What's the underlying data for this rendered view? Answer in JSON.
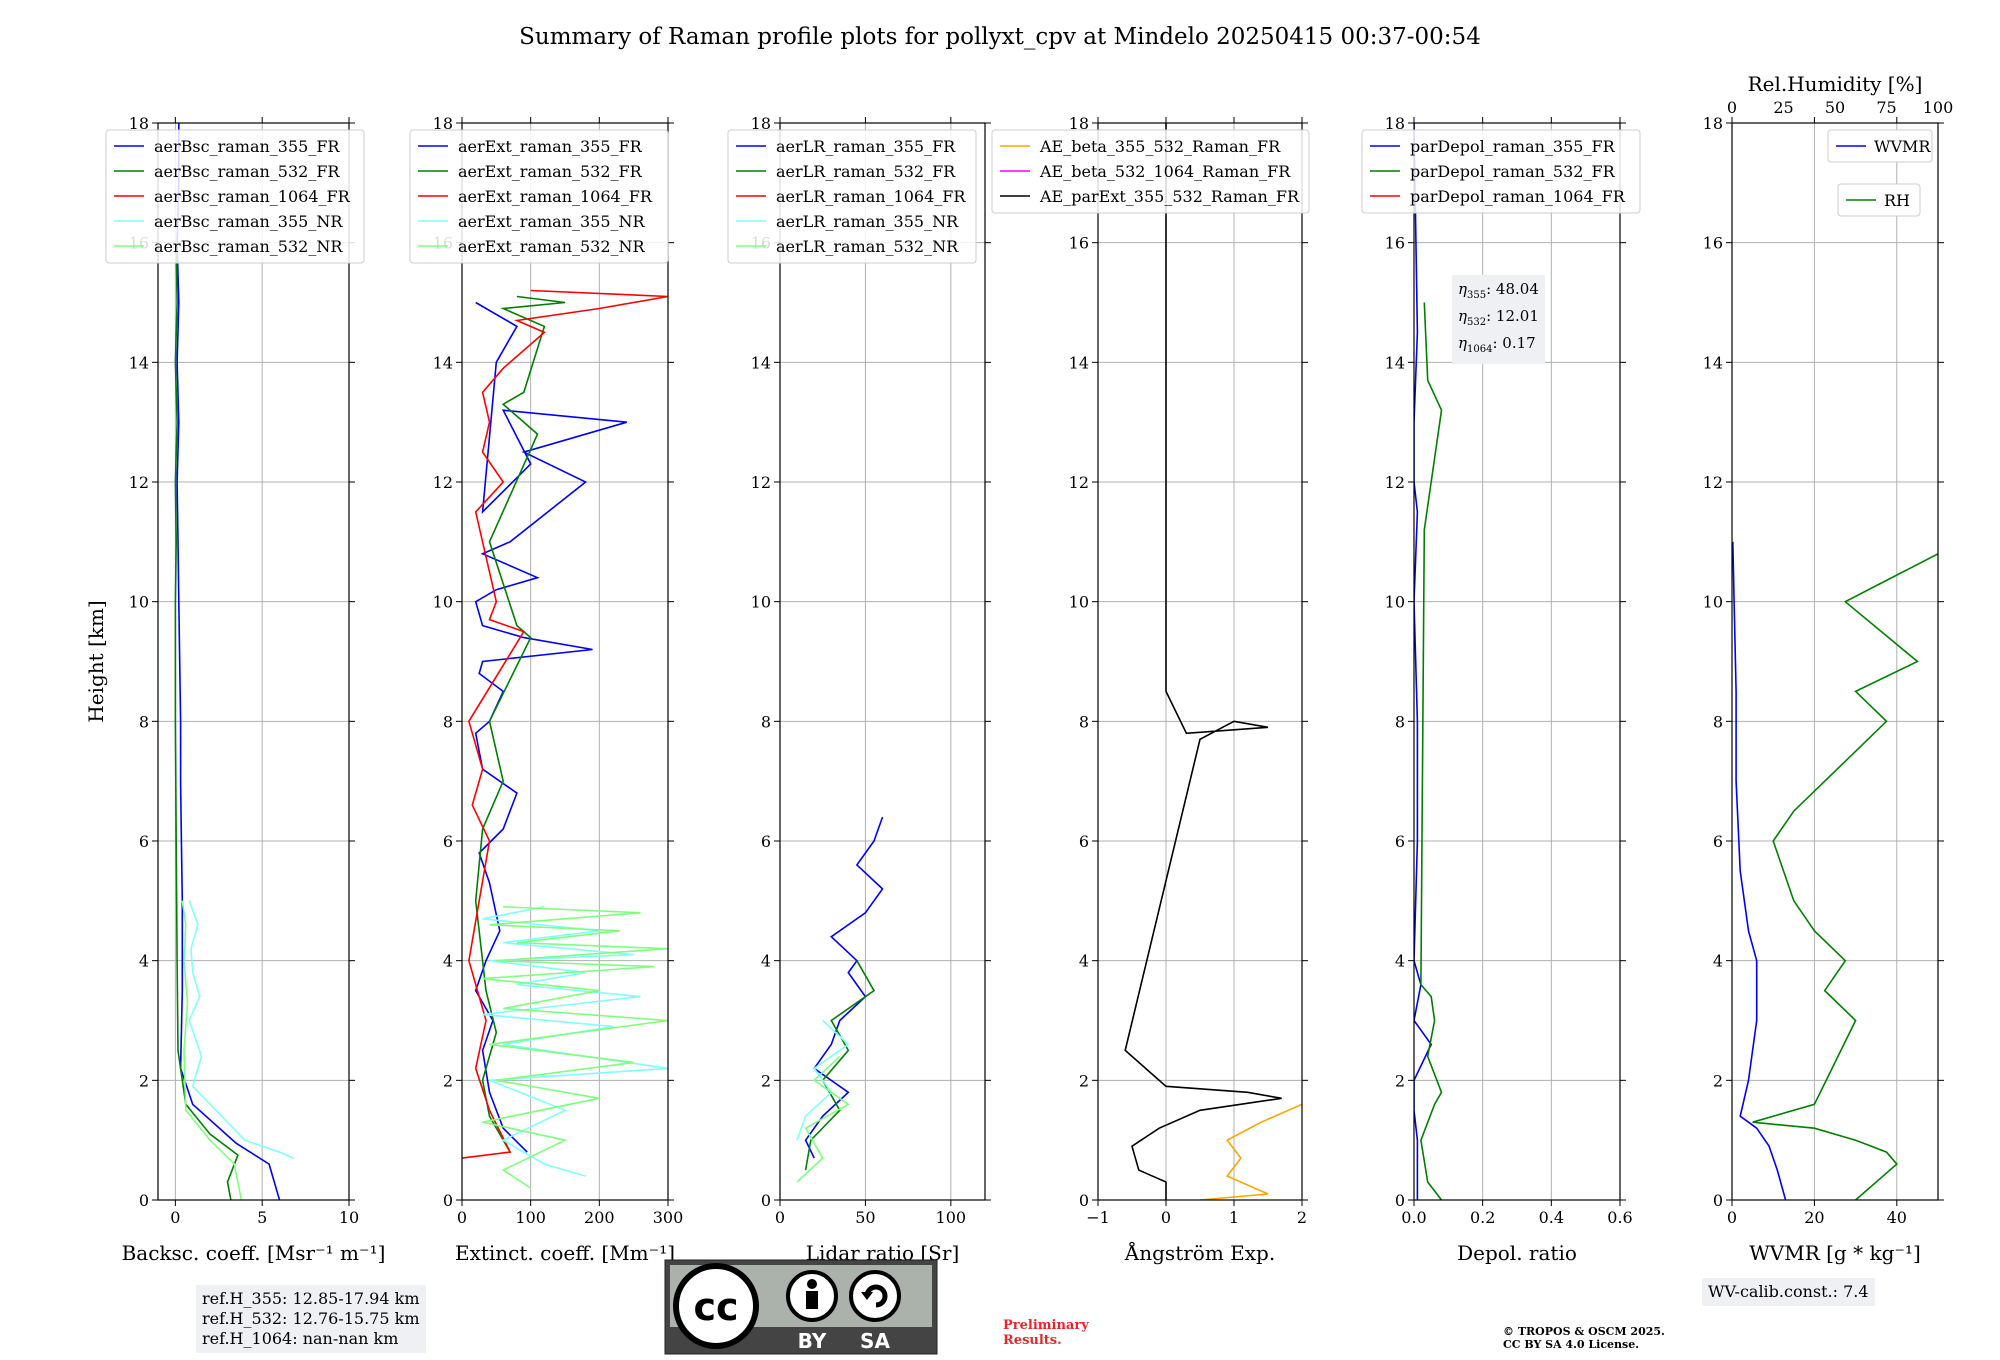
{
  "title": "Summary of Raman profile plots for pollyxt_cpv at Mindelo 20250415 00:37-00:54",
  "colors": {
    "blue": "#0000ff",
    "green": "#008000",
    "red": "#ff0000",
    "cyan": "#7fffff",
    "lightgreen": "#7fff7f",
    "orange": "#ffa500",
    "magenta": "#ff00ff",
    "black": "#000000"
  },
  "chart_data": [
    {
      "type": "line",
      "xlabel": "Backsc. coeff. [Msr⁻¹ m⁻¹]",
      "ylabel": "Height [km]",
      "xlim": [
        -1,
        10
      ],
      "ylim": [
        0,
        18
      ],
      "xticks": [
        0,
        5,
        10
      ],
      "xtick_labels": [
        "0",
        "5",
        "10"
      ],
      "yticks": [
        0,
        2,
        4,
        6,
        8,
        10,
        12,
        14,
        16,
        18
      ],
      "legend": "upper-left",
      "series": [
        {
          "name": "aerBsc_raman_355_FR",
          "color": "#0000ff",
          "x": [
            6.0,
            5.4,
            3.5,
            1.0,
            0.3,
            0.4,
            0.4,
            0.35,
            0.3,
            0.3,
            0.25,
            0.2,
            0.15,
            0.1,
            0.2,
            0.1,
            0.2,
            0.1,
            0.2,
            0.2
          ],
          "y": [
            0.0,
            0.6,
            0.95,
            1.6,
            2.2,
            3.5,
            5.0,
            6.0,
            7.0,
            8.0,
            9.0,
            10.0,
            11.0,
            12.0,
            13.0,
            14.0,
            15.0,
            16.0,
            17.0,
            18.0
          ]
        },
        {
          "name": "aerBsc_raman_532_FR",
          "color": "#008000",
          "x": [
            3.2,
            3.0,
            3.6,
            2.0,
            0.6,
            0.15,
            0.1,
            0.05,
            0.0,
            0.0,
            0.05,
            0.0,
            0.1,
            0.0,
            0.1,
            0.05
          ],
          "y": [
            0.0,
            0.3,
            0.75,
            1.1,
            1.6,
            2.5,
            4.0,
            6.0,
            8.0,
            10.0,
            11.0,
            12.0,
            13.0,
            14.0,
            15.0,
            16.0
          ]
        },
        {
          "name": "aerBsc_raman_1064_FR",
          "color": "#ff0000",
          "x": [],
          "y": []
        },
        {
          "name": "aerBsc_raman_355_NR",
          "color": "#7fffff",
          "x": [
            6.8,
            6.0,
            4.0,
            1.0,
            1.5,
            0.8,
            1.4,
            1.0,
            0.9,
            1.3,
            0.8
          ],
          "y": [
            0.7,
            0.8,
            1.0,
            1.9,
            2.4,
            3.0,
            3.4,
            3.8,
            4.2,
            4.6,
            5.0
          ]
        },
        {
          "name": "aerBsc_raman_532_NR",
          "color": "#7fff7f",
          "x": [
            3.8,
            3.4,
            2.0,
            0.6,
            0.5,
            0.7,
            0.5,
            0.6,
            0.4
          ],
          "y": [
            0.0,
            0.6,
            1.0,
            1.5,
            2.5,
            3.3,
            4.0,
            4.6,
            5.0
          ]
        }
      ]
    },
    {
      "type": "line",
      "xlabel": "Extinct. coeff. [Mm⁻¹]",
      "xlim": [
        0,
        300
      ],
      "ylim": [
        0,
        18
      ],
      "xticks": [
        0,
        100,
        200,
        300
      ],
      "xtick_labels": [
        "0",
        "100",
        "200",
        "300"
      ],
      "yticks": [
        0,
        2,
        4,
        6,
        8,
        10,
        12,
        14,
        16,
        18
      ],
      "legend": "upper-left",
      "series": [
        {
          "name": "aerExt_raman_355_FR",
          "color": "#0000ff",
          "x": [
            95,
            60,
            40,
            30,
            45,
            20,
            35,
            55,
            40,
            25,
            60,
            80,
            30,
            20,
            40,
            60,
            25,
            30,
            190,
            90,
            30,
            20,
            50,
            110,
            30,
            70,
            180,
            90,
            240,
            60,
            100,
            30,
            50,
            80,
            20
          ],
          "y": [
            0.8,
            1.2,
            1.8,
            2.5,
            3.0,
            3.5,
            4.0,
            4.5,
            5.3,
            5.8,
            6.2,
            6.8,
            7.2,
            7.8,
            8.0,
            8.5,
            8.8,
            9.0,
            9.2,
            9.4,
            9.6,
            10.0,
            10.2,
            10.4,
            10.8,
            11.0,
            12.0,
            12.5,
            13.0,
            13.2,
            12.3,
            11.5,
            14.0,
            14.6,
            15.0
          ]
        },
        {
          "name": "aerExt_raman_532_FR",
          "color": "#008000",
          "x": [
            70,
            40,
            30,
            50,
            35,
            20,
            30,
            60,
            40,
            100,
            80,
            40,
            110,
            60,
            90,
            120,
            60,
            150,
            80
          ],
          "y": [
            0.8,
            1.4,
            2.0,
            2.8,
            3.5,
            5.0,
            6.2,
            7.0,
            8.0,
            9.4,
            9.6,
            11.0,
            12.8,
            13.3,
            13.5,
            14.6,
            14.9,
            15.0,
            15.1
          ]
        },
        {
          "name": "aerExt_raman_1064_FR",
          "color": "#ff0000",
          "x": [
            0,
            70,
            40,
            20,
            35,
            10,
            25,
            40,
            15,
            30,
            10,
            90,
            40,
            50,
            20,
            60,
            30,
            40,
            30,
            60,
            120,
            80,
            200,
            300,
            100
          ],
          "y": [
            0.7,
            0.8,
            1.5,
            2.2,
            3.0,
            4.0,
            5.0,
            6.0,
            6.6,
            7.2,
            8.0,
            9.5,
            9.7,
            10.0,
            11.5,
            12.0,
            12.5,
            13.0,
            13.5,
            13.9,
            14.5,
            14.7,
            14.9,
            15.1,
            15.2
          ]
        },
        {
          "name": "aerExt_raman_355_NR",
          "color": "#7fffff",
          "x": [
            180,
            120,
            60,
            150,
            40,
            300,
            60,
            220,
            30,
            260,
            80,
            180,
            40,
            250,
            60,
            200,
            30,
            120
          ],
          "y": [
            0.4,
            0.6,
            1.0,
            1.5,
            2.0,
            2.2,
            2.6,
            2.9,
            3.1,
            3.4,
            3.6,
            3.8,
            4.0,
            4.1,
            4.3,
            4.5,
            4.7,
            4.9
          ]
        },
        {
          "name": "aerExt_raman_532_NR",
          "color": "#7fff7f",
          "x": [
            100,
            60,
            150,
            30,
            200,
            50,
            250,
            40,
            300,
            60,
            200,
            30,
            280,
            50,
            300,
            80,
            230,
            40,
            260,
            60
          ],
          "y": [
            0.2,
            0.5,
            1.0,
            1.3,
            1.7,
            2.0,
            2.3,
            2.6,
            3.0,
            3.2,
            3.5,
            3.7,
            3.9,
            4.0,
            4.2,
            4.3,
            4.5,
            4.6,
            4.8,
            4.9
          ]
        }
      ]
    },
    {
      "type": "line",
      "xlabel": "Lidar ratio [Sr]",
      "xlim": [
        0,
        120
      ],
      "ylim": [
        0,
        18
      ],
      "xticks": [
        0,
        50,
        100
      ],
      "xtick_labels": [
        "0",
        "50",
        "100"
      ],
      "yticks": [
        0,
        2,
        4,
        6,
        8,
        10,
        12,
        14,
        16,
        18
      ],
      "legend": "upper-left",
      "series": [
        {
          "name": "aerLR_raman_355_FR",
          "color": "#0000ff",
          "x": [
            20,
            15,
            25,
            40,
            20,
            30,
            35,
            50,
            40,
            45,
            30,
            50,
            60,
            45,
            55,
            60
          ],
          "y": [
            0.7,
            1.0,
            1.4,
            1.8,
            2.2,
            2.6,
            3.0,
            3.4,
            3.8,
            4.0,
            4.4,
            4.8,
            5.2,
            5.6,
            6.0,
            6.4
          ]
        },
        {
          "name": "aerLR_raman_532_FR",
          "color": "#008000",
          "x": [
            15,
            18,
            35,
            25,
            40,
            30,
            55,
            45
          ],
          "y": [
            0.5,
            1.0,
            1.5,
            2.0,
            2.5,
            3.0,
            3.5,
            4.0
          ]
        },
        {
          "name": "aerLR_raman_1064_FR",
          "color": "#ff0000",
          "x": [],
          "y": []
        },
        {
          "name": "aerLR_raman_355_NR",
          "color": "#7fffff",
          "x": [
            10,
            15,
            30,
            20,
            40,
            25
          ],
          "y": [
            1.0,
            1.4,
            1.8,
            2.2,
            2.6,
            3.0
          ]
        },
        {
          "name": "aerLR_raman_532_NR",
          "color": "#7fff7f",
          "x": [
            10,
            25,
            15,
            40,
            20,
            35
          ],
          "y": [
            0.3,
            0.7,
            1.2,
            1.6,
            2.0,
            2.4
          ]
        }
      ]
    },
    {
      "type": "line",
      "xlabel": "Ångström Exp.",
      "xlim": [
        -1,
        2
      ],
      "ylim": [
        0,
        18
      ],
      "xticks": [
        -1,
        0,
        1,
        2
      ],
      "xtick_labels": [
        "−1",
        "0",
        "1",
        "2"
      ],
      "yticks": [
        0,
        2,
        4,
        6,
        8,
        10,
        12,
        14,
        16,
        18
      ],
      "legend": "upper-center",
      "series": [
        {
          "name": "AE_beta_355_532_Raman_FR",
          "color": "#ffa500",
          "x": [
            0.5,
            1.5,
            0.9,
            1.1,
            0.9,
            1.4,
            2.0
          ],
          "y": [
            0.0,
            0.1,
            0.4,
            0.7,
            1.0,
            1.3,
            1.6
          ]
        },
        {
          "name": "AE_beta_532_1064_Raman_FR",
          "color": "#ff00ff",
          "x": [],
          "y": []
        },
        {
          "name": "AE_parExt_355_532_Raman_FR",
          "color": "#000000",
          "x": [
            0.0,
            0.0,
            -0.4,
            -0.5,
            -0.1,
            0.5,
            1.7,
            1.2,
            0.0,
            -0.3,
            -0.6,
            0.5,
            1.0,
            1.5,
            0.3,
            0.0,
            0.0,
            0.0,
            0.0
          ],
          "y": [
            0.0,
            0.3,
            0.5,
            0.9,
            1.2,
            1.5,
            1.7,
            1.8,
            1.9,
            2.2,
            2.5,
            7.7,
            8.0,
            7.9,
            7.8,
            8.5,
            10.0,
            14.0,
            18.0
          ]
        }
      ]
    },
    {
      "type": "line",
      "xlabel": "Depol. ratio",
      "xlim": [
        0,
        0.6
      ],
      "ylim": [
        0,
        18
      ],
      "xticks": [
        0,
        0.2,
        0.4,
        0.6
      ],
      "xtick_labels": [
        "0.0",
        "0.2",
        "0.4",
        "0.6"
      ],
      "yticks": [
        0,
        2,
        4,
        6,
        8,
        10,
        12,
        14,
        16,
        18
      ],
      "legend": "upper-left",
      "series": [
        {
          "name": "parDepol_raman_355_FR",
          "color": "#0000ff",
          "x": [
            0.01,
            0.01,
            0.0,
            0.0,
            0.05,
            0.0,
            0.02,
            0.0,
            0.01,
            0.01,
            0.0,
            0.01,
            0.0,
            0.0,
            0.01,
            0.0
          ],
          "y": [
            0.0,
            1.0,
            1.5,
            2.0,
            2.6,
            3.0,
            3.6,
            4.0,
            6.0,
            8.0,
            10.0,
            11.5,
            12.0,
            13.0,
            14.5,
            18.0
          ]
        },
        {
          "name": "parDepol_raman_532_FR",
          "color": "#008000",
          "x": [
            0.08,
            0.04,
            0.02,
            0.06,
            0.08,
            0.04,
            0.06,
            0.05,
            0.02,
            0.03,
            0.08,
            0.04,
            0.03
          ],
          "y": [
            0.0,
            0.3,
            1.0,
            1.6,
            1.8,
            2.4,
            3.0,
            3.4,
            3.6,
            11.2,
            13.2,
            13.7,
            15.0
          ]
        },
        {
          "name": "parDepol_raman_1064_FR",
          "color": "#ff0000",
          "x": [],
          "y": []
        }
      ]
    },
    {
      "type": "line",
      "xlabel": "WVMR [g * kg⁻¹]",
      "x2label": "Rel.Humidity [%]",
      "xlim": [
        0,
        50
      ],
      "x2lim": [
        0,
        100
      ],
      "ylim": [
        0,
        18
      ],
      "xticks": [
        0,
        20,
        40
      ],
      "xtick_labels": [
        "0",
        "20",
        "40"
      ],
      "x2ticks": [
        0,
        25,
        50,
        75,
        100
      ],
      "x2tick_labels": [
        "0",
        "25",
        "50",
        "75",
        "100"
      ],
      "yticks": [
        0,
        2,
        4,
        6,
        8,
        10,
        12,
        14,
        16,
        18
      ],
      "series": [
        {
          "name": "WVMR",
          "color": "#0000ff",
          "axis": "bottom",
          "x": [
            13,
            11,
            9,
            6,
            2,
            4,
            6,
            6,
            4,
            2,
            1,
            1,
            0.5,
            0.2
          ],
          "y": [
            0.0,
            0.5,
            0.9,
            1.2,
            1.4,
            2.0,
            3.0,
            4.0,
            4.5,
            5.5,
            7.0,
            8.5,
            10.0,
            11.0
          ]
        },
        {
          "name": "RH",
          "color": "#008000",
          "axis": "top",
          "x": [
            60,
            80,
            75,
            60,
            40,
            10,
            40,
            60,
            45,
            55,
            40,
            30,
            20,
            30,
            45,
            60,
            75,
            60,
            90,
            55,
            100
          ],
          "y": [
            0.0,
            0.6,
            0.8,
            1.0,
            1.2,
            1.3,
            1.6,
            3.0,
            3.5,
            4.0,
            4.5,
            5.0,
            6.0,
            6.5,
            7.0,
            7.5,
            8.0,
            8.5,
            9.0,
            10.0,
            10.8
          ]
        }
      ]
    }
  ],
  "info": {
    "eta_355": "48.04",
    "eta_532": "12.01",
    "eta_1064": "0.17",
    "ref_355": "ref.H_355: 12.85-17.94 km",
    "ref_532": "ref.H_532: 12.76-15.75 km",
    "ref_1064": "ref.H_1064: nan-nan km",
    "wv_calib": "WV-calib.const.: 7.4",
    "preliminary_1": "Preliminary",
    "preliminary_2": "Results.",
    "copyright_1": "© TROPOS & OSCM 2025.",
    "copyright_2": "CC BY SA 4.0 License.",
    "cc_logo": "cc",
    "cc_by": "BY",
    "cc_sa": "SA"
  }
}
